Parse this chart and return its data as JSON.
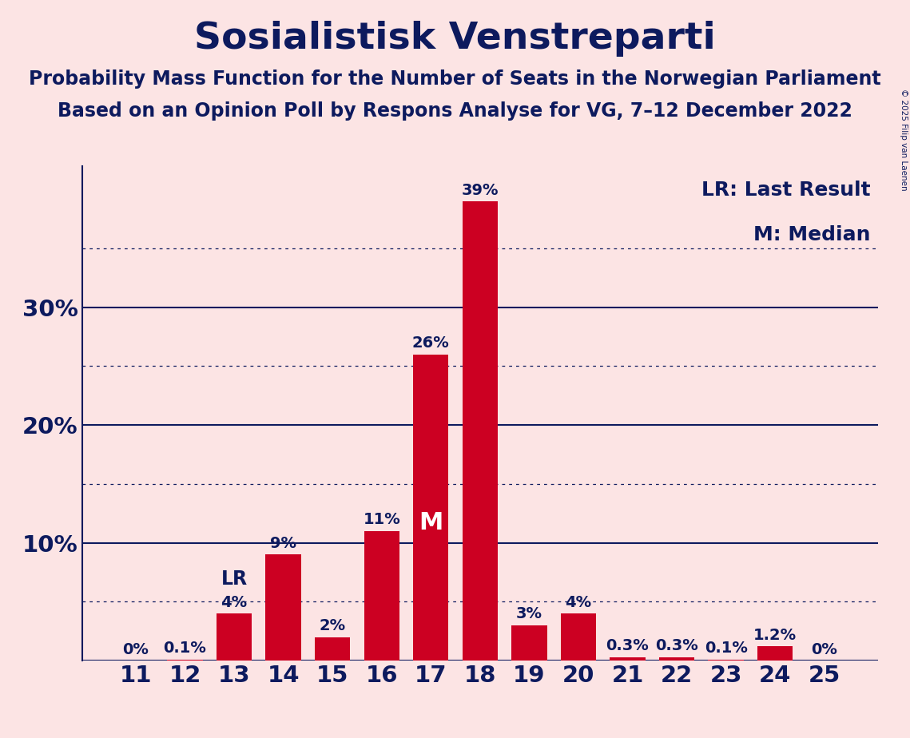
{
  "title": "Sosialistisk Venstreparti",
  "subtitle1": "Probability Mass Function for the Number of Seats in the Norwegian Parliament",
  "subtitle2": "Based on an Opinion Poll by Respons Analyse for VG, 7–12 December 2022",
  "copyright": "© 2025 Filip van Laenen",
  "seats": [
    11,
    12,
    13,
    14,
    15,
    16,
    17,
    18,
    19,
    20,
    21,
    22,
    23,
    24,
    25
  ],
  "probabilities": [
    0.0,
    0.1,
    4.0,
    9.0,
    2.0,
    11.0,
    26.0,
    39.0,
    3.0,
    4.0,
    0.3,
    0.3,
    0.1,
    1.2,
    0.0
  ],
  "labels": [
    "0%",
    "0.1%",
    "4%",
    "9%",
    "2%",
    "11%",
    "26%",
    "39%",
    "3%",
    "4%",
    "0.3%",
    "0.3%",
    "0.1%",
    "1.2%",
    "0%"
  ],
  "bar_color": "#cc0022",
  "background_color": "#fce4e4",
  "text_color": "#0d1a5e",
  "median_seat": 17,
  "lr_seat": 13,
  "ylim": [
    0,
    42
  ],
  "legend_text1": "LR: Last Result",
  "legend_text2": "M: Median",
  "title_fontsize": 34,
  "subtitle_fontsize": 17,
  "label_fontsize": 14,
  "tick_fontsize": 21,
  "ytick_labels": [
    "10%",
    "20%",
    "30%"
  ],
  "ytick_values": [
    10,
    20,
    30
  ],
  "solid_hlines": [
    10,
    20,
    30
  ],
  "dotted_hlines": [
    5,
    15,
    25,
    35
  ],
  "bottom_hline": 0
}
